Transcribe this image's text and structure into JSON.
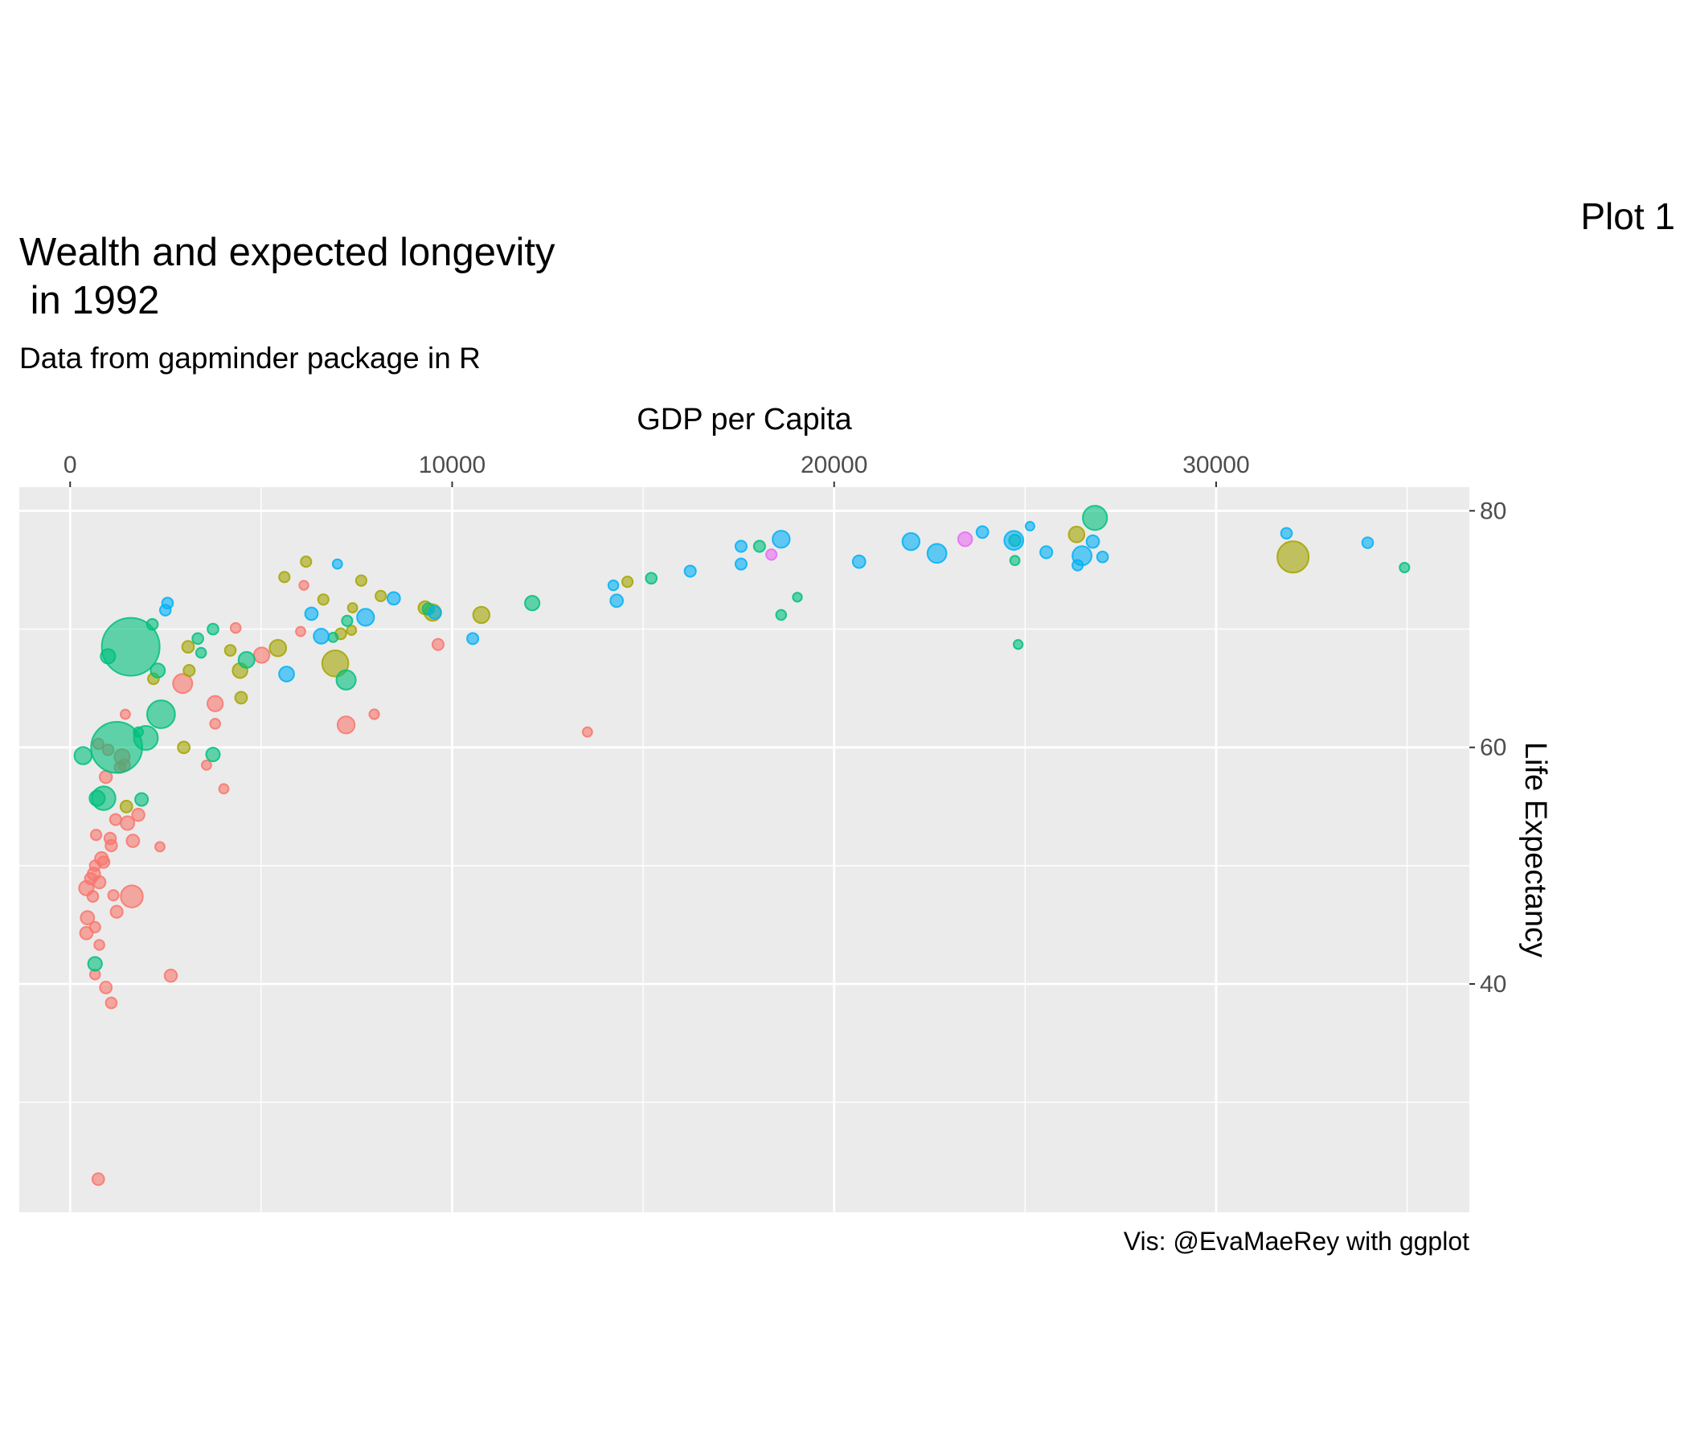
{
  "chart_data": {
    "type": "scatter",
    "title": "Wealth and expected longevity\n in 1992",
    "subtitle": "Data from gapminder package in R",
    "xlabel": "GDP per Capita",
    "ylabel": "Life Expectancy",
    "caption": "Vis: @EvaMaeRey with ggplot",
    "tag": "Plot 1",
    "xlim": [
      -1331,
      36629
    ],
    "ylim": [
      20.7,
      82.0
    ],
    "xticks": [
      0,
      10000,
      20000,
      30000
    ],
    "yticks": [
      40,
      60,
      80
    ],
    "x_minor_ticks": [
      5000,
      15000,
      25000,
      35000
    ],
    "y_minor_ticks": [
      30,
      50,
      70
    ],
    "grid": true,
    "x_axis_position": "top",
    "y_axis_position": "right",
    "series": [
      {
        "color": "#F8766D",
        "x": [
          737,
          2635,
          1077,
          935,
          652,
          765,
          652,
          425,
          453,
          1218,
          1615,
          1133,
          425,
          595,
          765,
          623,
          652,
          878,
          822,
          538,
          2351,
          1643,
          1077,
          1048,
          680,
          1501,
          1190,
          1785,
          935,
          1303,
          1417,
          1360,
          992,
          737,
          1445,
          3570,
          4023,
          3796,
          3796,
          7224,
          7961,
          13542,
          9632,
          2946,
          4334,
          5014,
          6119,
          6034
        ],
        "values": [
          23.5,
          40.7,
          38.4,
          39.7,
          40.8,
          43.3,
          44.8,
          44.3,
          45.6,
          46.1,
          47.4,
          47.5,
          48.1,
          47.4,
          48.6,
          49.3,
          50.0,
          50.3,
          50.6,
          48.9,
          51.6,
          52.1,
          51.7,
          52.3,
          52.6,
          53.6,
          53.9,
          54.3,
          57.5,
          58.3,
          58.5,
          59.2,
          59.8,
          60.3,
          62.8,
          58.5,
          56.5,
          62.0,
          63.7,
          61.9,
          62.8,
          61.3,
          68.7,
          65.4,
          70.1,
          67.8,
          73.7,
          69.8
        ],
        "sizes": [
          7,
          9,
          4,
          7,
          2,
          2,
          3,
          10,
          14,
          8,
          93,
          3,
          20,
          4,
          9,
          10,
          3,
          6,
          12,
          6,
          1,
          10,
          6,
          6,
          3,
          15,
          5,
          9,
          9,
          4,
          6,
          25,
          4,
          3,
          1,
          1,
          1,
          2,
          26,
          39,
          1.5,
          1,
          5,
          59,
          2,
          26,
          0.6,
          1
        ]
      },
      {
        "color": "#A3A500",
        "x": [
          32013,
          26347,
          14590,
          10765,
          9292,
          9491,
          8131,
          7621,
          7394,
          7366,
          7083,
          6941,
          6629,
          6176,
          5609,
          5439,
          4448,
          4193,
          4476,
          3088,
          3116,
          2975,
          2181,
          1473
        ],
        "values": [
          76.1,
          78.0,
          74.0,
          71.2,
          71.8,
          71.4,
          72.8,
          74.1,
          71.8,
          69.9,
          69.6,
          67.1,
          72.5,
          75.7,
          74.4,
          68.4,
          66.5,
          68.2,
          64.2,
          68.5,
          66.5,
          60.0,
          65.8,
          55.0
        ],
        "sizes": [
          256,
          28,
          3,
          33,
          13,
          34,
          3,
          3,
          1,
          1,
          4,
          155,
          3,
          3,
          3,
          34,
          22,
          4,
          7,
          7,
          5,
          7,
          4,
          7
        ]
      },
      {
        "color": "#00BF7D",
        "x": [
          26828,
          34931,
          24817,
          24732,
          24732,
          19038,
          18613,
          18046,
          15213,
          12097,
          9377,
          7224,
          7252,
          6884,
          4618,
          3740,
          3343,
          3428,
          2295,
          2153,
          2380,
          1586,
          992,
          1218,
          1983,
          1785,
          340,
          3740,
          878,
          708,
          1870,
          652
        ],
        "values": [
          79.4,
          75.2,
          68.7,
          75.8,
          77.5,
          72.7,
          71.2,
          77.0,
          74.3,
          72.2,
          71.7,
          65.7,
          70.7,
          69.3,
          67.4,
          70.0,
          69.2,
          68.0,
          66.5,
          70.4,
          62.8,
          68.5,
          67.7,
          60.0,
          60.8,
          61.3,
          59.3,
          59.4,
          55.7,
          55.7,
          55.6,
          41.7
        ],
        "sizes": [
          124,
          1.4,
          0.5,
          1,
          6,
          0.5,
          2,
          5,
          4,
          20,
          6,
          60,
          3,
          1,
          30,
          4,
          4,
          2,
          18,
          4,
          185,
          1165,
          20,
          872,
          120,
          1,
          40,
          15,
          114,
          25,
          11,
          16
        ]
      },
      {
        "color": "#00B0F6",
        "x": [
          31842,
          33967,
          27027,
          26489,
          26375,
          26772,
          25128,
          25554,
          24704,
          23882,
          22692,
          22012,
          20653,
          18613,
          17564,
          17564,
          16233,
          14221,
          14307,
          10539,
          8471,
          7734,
          9547,
          6997,
          6573,
          6317,
          5666,
          2550,
          2493
        ],
        "values": [
          78.1,
          77.3,
          76.1,
          76.2,
          75.4,
          77.4,
          78.7,
          76.5,
          77.5,
          78.2,
          76.4,
          77.4,
          75.7,
          77.6,
          77.0,
          75.5,
          74.9,
          73.7,
          72.4,
          69.2,
          72.6,
          71.0,
          71.4,
          75.5,
          69.4,
          71.3,
          66.2,
          72.2,
          71.6
        ],
        "sizes": [
          4,
          4,
          4,
          58,
          3,
          10,
          0.3,
          8,
          57,
          7,
          57,
          39,
          10,
          39,
          5,
          5,
          5,
          2,
          10,
          5,
          10,
          38,
          10,
          1,
          23,
          10,
          23,
          4,
          4
        ]
      },
      {
        "color": "#E76BF3",
        "x": [
          23429,
          18358
        ],
        "values": [
          77.6,
          76.3
        ],
        "sizes": [
          17,
          3
        ]
      }
    ]
  }
}
